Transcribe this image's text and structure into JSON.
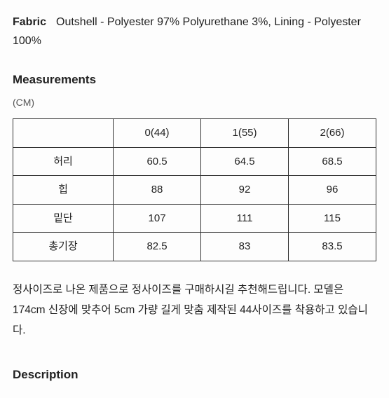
{
  "fabric": {
    "label": "Fabric",
    "value": "Outshell - Polyester 97% Polyurethane 3%, Lining - Polyester 100%"
  },
  "measurements": {
    "heading": "Measurements",
    "unit": "(CM)",
    "table": {
      "header": [
        "",
        "0(44)",
        "1(55)",
        "2(66)"
      ],
      "rows": [
        [
          "허리",
          "60.5",
          "64.5",
          "68.5"
        ],
        [
          "힙",
          "88",
          "92",
          "96"
        ],
        [
          "밑단",
          "107",
          "111",
          "115"
        ],
        [
          "총기장",
          "82.5",
          "83",
          "83.5"
        ]
      ]
    },
    "fit_note": "정사이즈로 나온 제품으로 정사이즈를 구매하시길 추천해드립니다. 모델은 174cm 신장에 맞추어 5cm 가량 길게 맞춤 제작된 44사이즈를 착용하고 있습니다."
  },
  "description": {
    "heading": "Description"
  },
  "styling": {
    "background_color": "#fdfdfd",
    "text_color": "#222",
    "border_color": "#333",
    "unit_color": "#555"
  }
}
